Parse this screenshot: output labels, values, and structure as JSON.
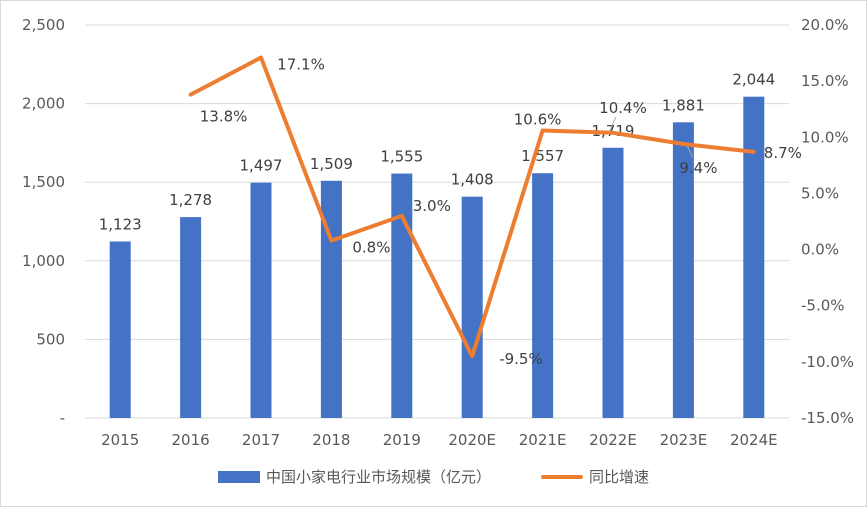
{
  "chart_data": {
    "type": "bar",
    "categories": [
      "2015",
      "2016",
      "2017",
      "2018",
      "2019",
      "2020E",
      "2021E",
      "2022E",
      "2023E",
      "2024E"
    ],
    "series": [
      {
        "name": "中国小家电行业市场规模（亿元）",
        "type": "bar",
        "axis": "left",
        "values": [
          1123,
          1278,
          1497,
          1509,
          1555,
          1408,
          1557,
          1719,
          1881,
          2044
        ],
        "labels": [
          "1,123",
          "1,278",
          "1,497",
          "1,509",
          "1,555",
          "1,408",
          "1,557",
          "1,719",
          "1,881",
          "2,044"
        ]
      },
      {
        "name": "同比增速",
        "type": "line",
        "axis": "right",
        "values": [
          null,
          13.8,
          17.1,
          0.8,
          3.0,
          -9.5,
          10.6,
          10.4,
          9.4,
          8.7
        ],
        "labels": [
          "",
          "13.8%",
          "17.1%",
          "0.8%",
          "3.0%",
          "-9.5%",
          "10.6%",
          "10.4%",
          "9.4%",
          "8.7%"
        ]
      }
    ],
    "y_left": {
      "min": 0,
      "max": 2500,
      "ticks": [
        0,
        500,
        1000,
        1500,
        2000,
        2500
      ],
      "tick_labels": [
        "-",
        "500",
        "1,000",
        "1,500",
        "2,000",
        "2,500"
      ]
    },
    "y_right": {
      "min": -15,
      "max": 20,
      "ticks": [
        -15,
        -10,
        -5,
        0,
        5,
        10,
        15,
        20
      ],
      "tick_labels": [
        "-15.0%",
        "-10.0%",
        "-5.0%",
        "0.0%",
        "5.0%",
        "10.0%",
        "15.0%",
        "20.0%"
      ]
    },
    "grid": true,
    "legend": "bottom",
    "colors": {
      "bar": "#4472C4",
      "line": "#ED7D31",
      "grid": "#d9d9d9",
      "text": "#595959"
    }
  }
}
